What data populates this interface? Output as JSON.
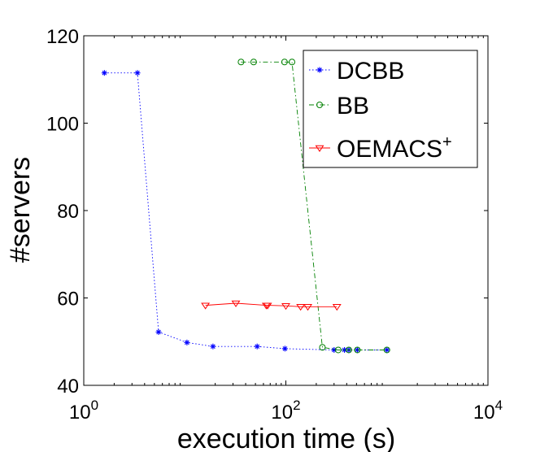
{
  "chart_data": {
    "type": "line",
    "xlabel": "execution time (s)",
    "ylabel": "#servers",
    "xscale": "log",
    "xlim": [
      1,
      10000
    ],
    "ylim": [
      40,
      120
    ],
    "xticks": [
      {
        "value": 1,
        "base": "10",
        "exp": "0"
      },
      {
        "value": 100,
        "base": "10",
        "exp": "2"
      },
      {
        "value": 10000,
        "base": "10",
        "exp": "4"
      }
    ],
    "yticks": [
      40,
      60,
      80,
      100,
      120
    ],
    "legend_position": "top-right",
    "series": [
      {
        "name": "DCBB",
        "color": "#0000ff",
        "linestyle": "dotted",
        "marker": "asterisk",
        "x": [
          1.6,
          3.4,
          5.5,
          10.5,
          19,
          52,
          98,
          300,
          380,
          420,
          510,
          1000
        ],
        "y": [
          111.5,
          111.5,
          52.2,
          49.8,
          48.9,
          48.9,
          48.4,
          48.1,
          48.1,
          48.1,
          48.1,
          48.1
        ]
      },
      {
        "name": "BB",
        "color": "#008000",
        "linestyle": "dashdot",
        "marker": "circle",
        "x": [
          36,
          48,
          97,
          115,
          230,
          330,
          420,
          510,
          1000
        ],
        "y": [
          114,
          114,
          114,
          114,
          48.7,
          48.1,
          48.1,
          48.1,
          48.1
        ]
      },
      {
        "name": "OEMACS",
        "name_sup": "+",
        "color": "#ff0000",
        "linestyle": "solid",
        "marker": "triangle-down",
        "x": [
          16,
          32,
          64,
          66,
          100,
          140,
          165,
          320
        ],
        "y": [
          58.3,
          58.8,
          58.3,
          58.3,
          58.2,
          58.0,
          58.0,
          58.0
        ]
      }
    ]
  }
}
